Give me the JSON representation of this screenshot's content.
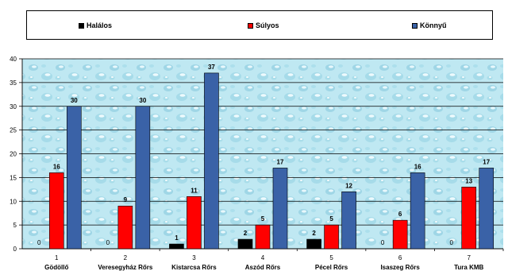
{
  "chart_data": {
    "type": "bar",
    "categories": [
      "1",
      "2",
      "3",
      "4",
      "5",
      "6",
      "7"
    ],
    "category_names": [
      "Gödöllő",
      "Veresegyház Rőrs",
      "Kistarcsa Rőrs",
      "Aszód Rőrs",
      "Pécel Rőrs",
      "Isaszeg Rőrs",
      "Tura KMB"
    ],
    "series": [
      {
        "name": "Halálos",
        "color": "#000000",
        "values": [
          0,
          0,
          1,
          2,
          2,
          0,
          0
        ]
      },
      {
        "name": "Súlyos",
        "color": "#ff0000",
        "values": [
          16,
          9,
          11,
          5,
          5,
          6,
          13
        ]
      },
      {
        "name": "Könnyű",
        "color": "#3a62a7",
        "values": [
          30,
          30,
          37,
          17,
          12,
          16,
          17
        ]
      }
    ],
    "yticks": [
      "0",
      "5",
      "10",
      "15",
      "20",
      "25",
      "30",
      "35",
      "40"
    ],
    "ylim": [
      0,
      40
    ],
    "grid": true,
    "legend_position": "top",
    "plot_background": "water-droplet texture, light cyan"
  }
}
